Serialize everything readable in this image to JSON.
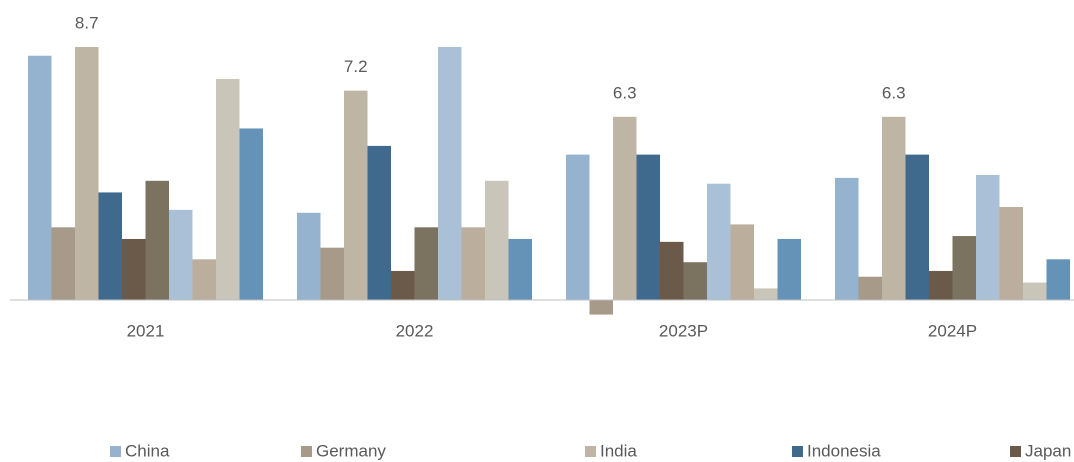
{
  "chart_data": {
    "type": "bar",
    "categories": [
      "2021",
      "2022",
      "2023P",
      "2024P"
    ],
    "ylim": [
      -1,
      9
    ],
    "series": [
      {
        "name": "China",
        "color": "#95b3cf",
        "values": [
          8.4,
          3.0,
          5.0,
          4.2
        ]
      },
      {
        "name": "Germany",
        "color": "#a89a88",
        "values": [
          2.5,
          1.8,
          -0.5,
          0.8
        ]
      },
      {
        "name": "India",
        "color": "#bfb5a5",
        "values": [
          8.7,
          7.2,
          6.3,
          6.3
        ],
        "labels": true
      },
      {
        "name": "Indonesia",
        "color": "#3f6a8e",
        "values": [
          3.7,
          5.3,
          5.0,
          5.0
        ]
      },
      {
        "name": "Japan",
        "color": "#6b5a4a",
        "values": [
          2.1,
          1.0,
          2.0,
          1.0
        ]
      },
      {
        "color": "#7b7260",
        "values": [
          4.1,
          2.5,
          1.3,
          2.2
        ]
      },
      {
        "color": "#a9c0d6",
        "values": [
          3.1,
          8.7,
          4.0,
          4.3
        ]
      },
      {
        "color": "#bcae9d",
        "values": [
          1.4,
          2.5,
          2.6,
          3.2
        ]
      },
      {
        "color": "#c9c5b8",
        "values": [
          7.6,
          4.1,
          0.4,
          0.6
        ]
      },
      {
        "color": "#6593b8",
        "values": [
          5.9,
          2.1,
          2.1,
          1.4
        ]
      }
    ]
  }
}
